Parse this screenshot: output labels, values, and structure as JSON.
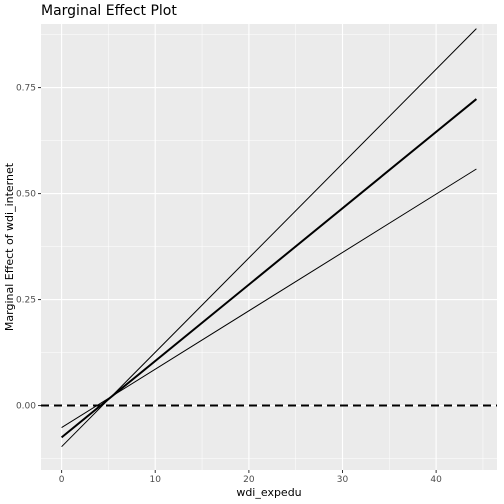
{
  "chart_data": {
    "type": "line",
    "title": "Marginal Effect Plot",
    "xlabel": "wdi_expedu",
    "ylabel": "Marginal Effect of wdi_internet",
    "xlim": [
      -2.2,
      46.5
    ],
    "ylim": [
      -0.152,
      0.9
    ],
    "x_ticks": [
      0,
      10,
      20,
      30,
      40
    ],
    "x_tick_labels": [
      "0",
      "10",
      "20",
      "30",
      "40"
    ],
    "y_ticks": [
      0,
      0.25,
      0.5,
      0.75
    ],
    "y_tick_labels": [
      "0.00",
      "0.25",
      "0.50",
      "0.75"
    ],
    "grid": true,
    "background": "#ebebeb",
    "series": [
      {
        "role": "estimate",
        "x": [
          0,
          44.3
        ],
        "y": [
          -0.075,
          0.723
        ],
        "color": "#000000",
        "style": "solid",
        "weight": "thick"
      },
      {
        "role": "upper",
        "x": [
          0,
          44.3
        ],
        "y": [
          -0.097,
          0.889
        ],
        "color": "#000000",
        "style": "solid",
        "weight": "thin"
      },
      {
        "role": "lower",
        "x": [
          0,
          44.3
        ],
        "y": [
          -0.052,
          0.558
        ],
        "color": "#000000",
        "style": "solid",
        "weight": "thin"
      }
    ],
    "reference_line": {
      "y": 0,
      "style": "dashed",
      "color": "#000000"
    }
  }
}
